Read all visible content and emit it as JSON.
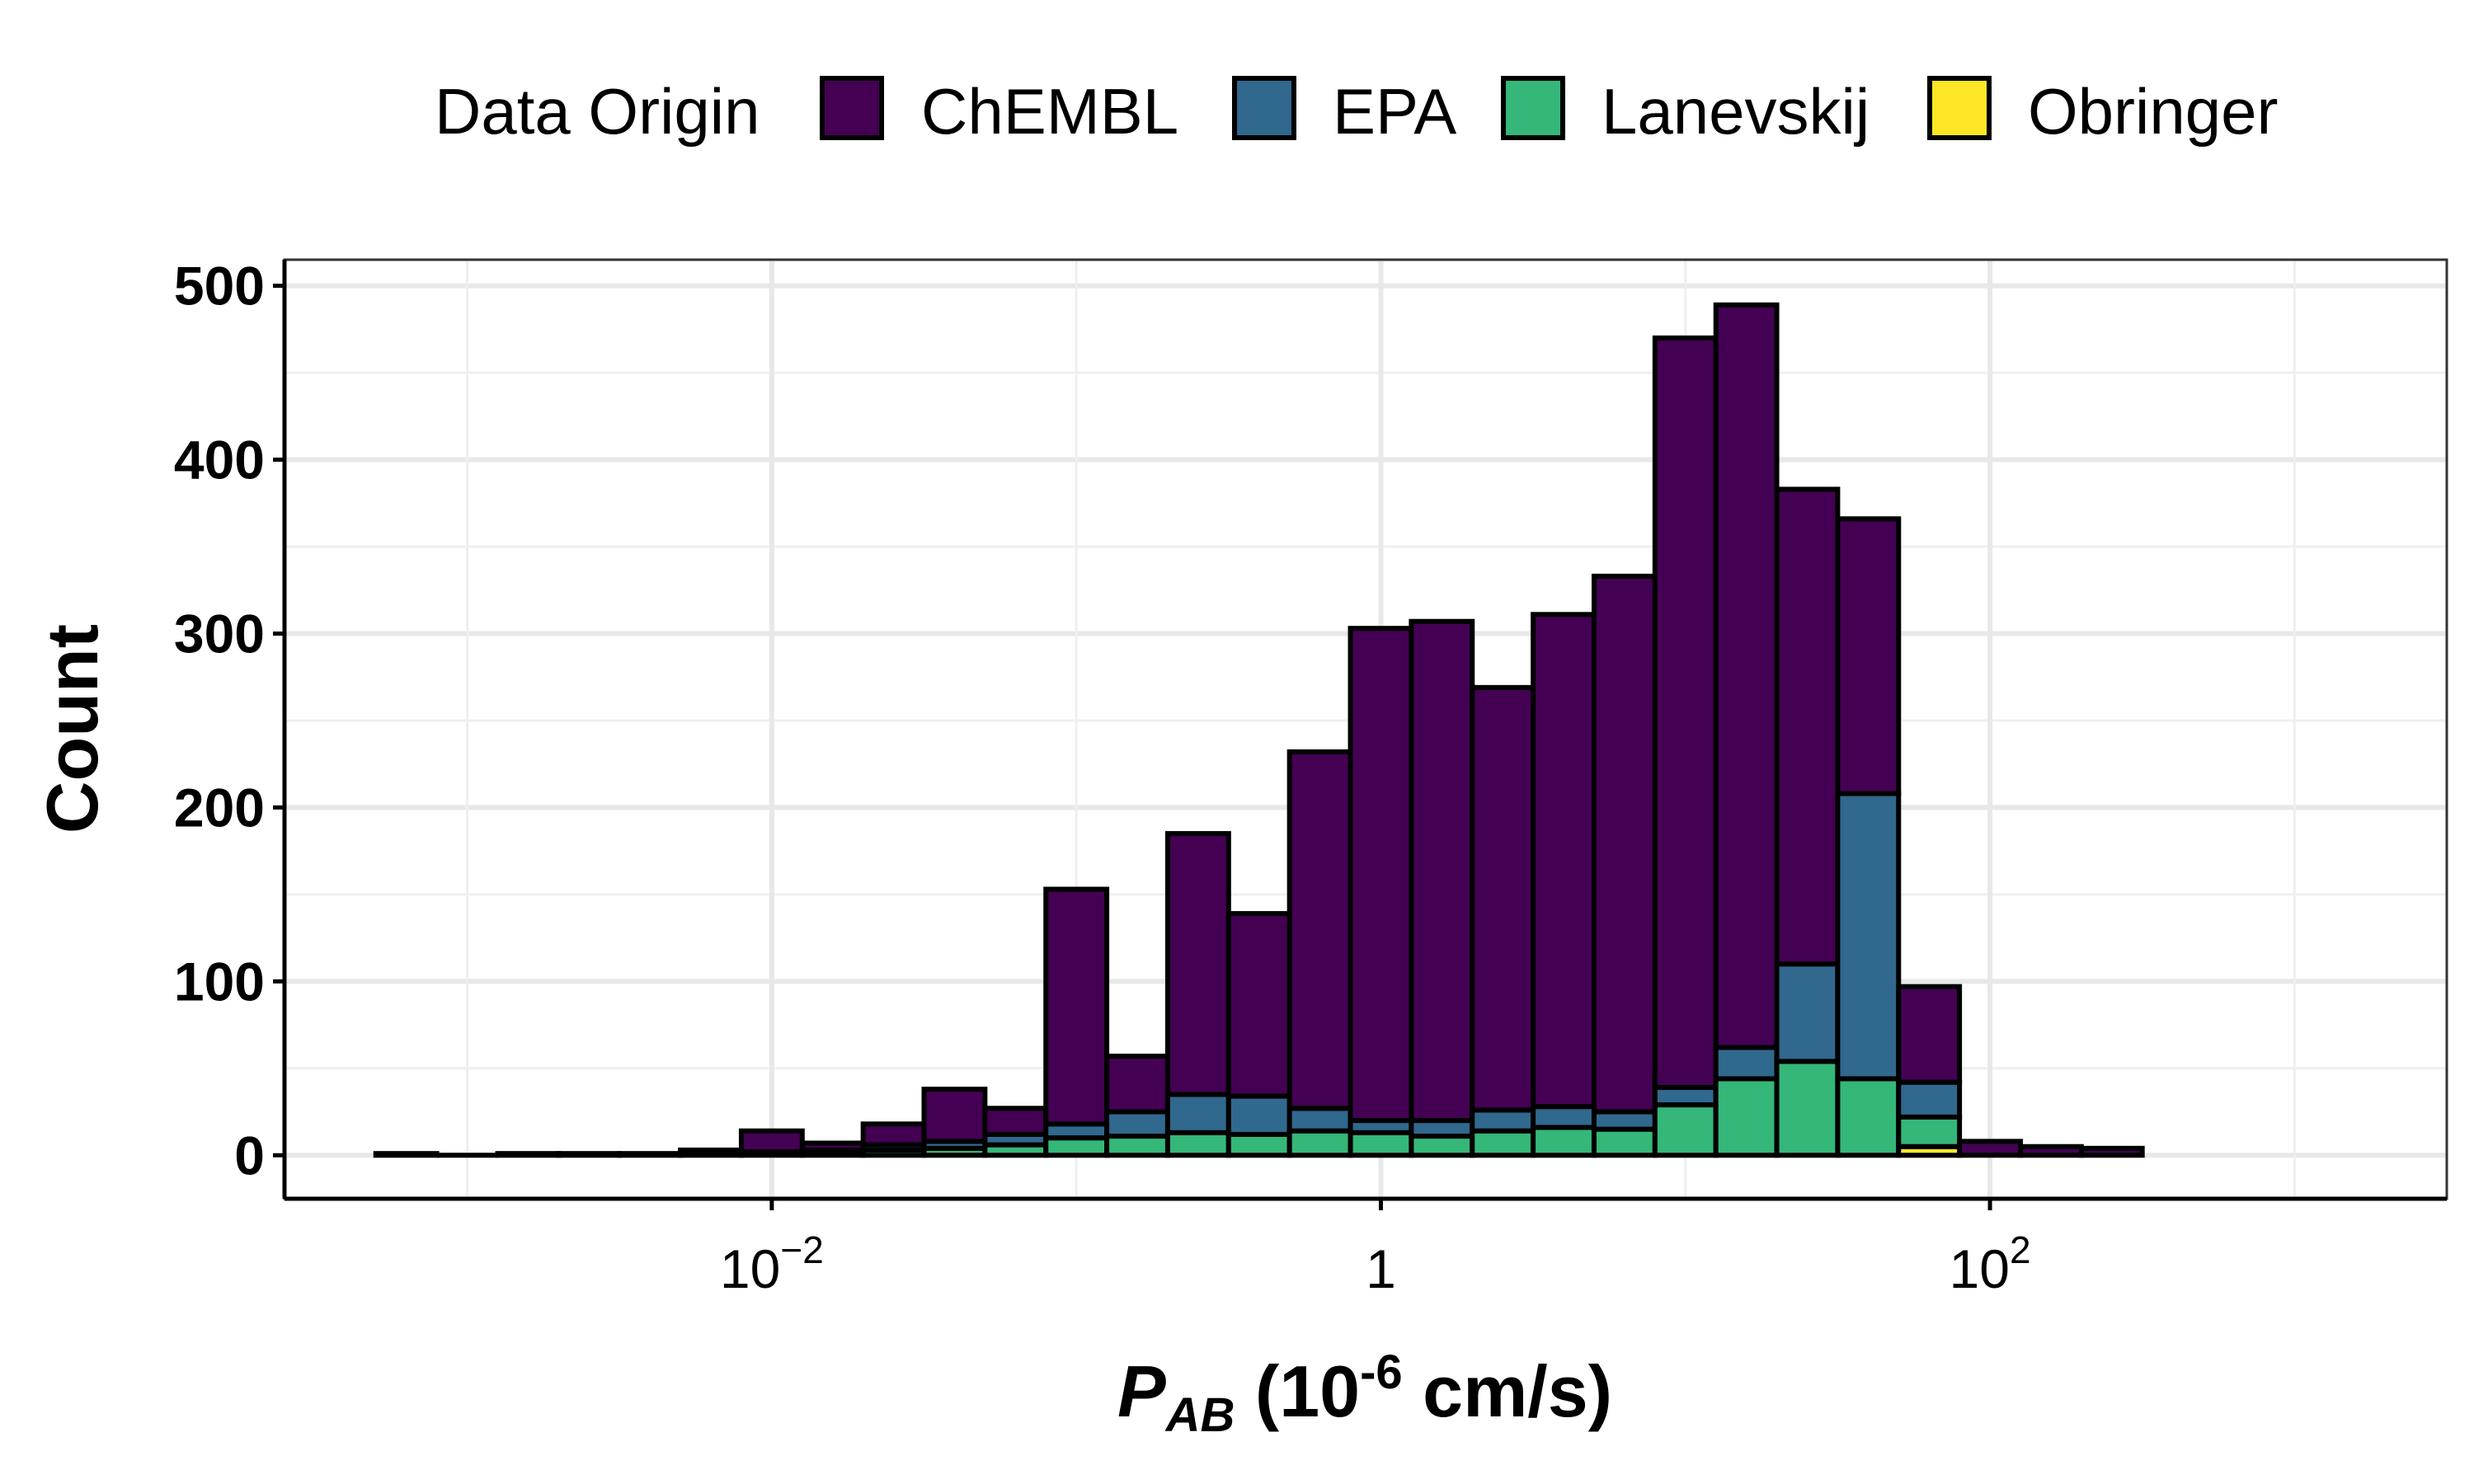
{
  "chart_data": {
    "type": "bar",
    "subtype": "stacked-histogram",
    "xscale": "log10",
    "xlim_log10": [
      -3.6,
      3.5
    ],
    "ylim": [
      -25,
      515
    ],
    "legend": {
      "title": "Data Origin",
      "position": "top",
      "entries": [
        "ChEMBL",
        "EPA",
        "Lanevskij",
        "Obringer"
      ]
    },
    "colors": {
      "ChEMBL": "#440154",
      "EPA": "#31688E",
      "Lanevskij": "#35B779",
      "Obringer": "#FDE725"
    },
    "stack_order": [
      "Obringer",
      "Lanevskij",
      "EPA",
      "ChEMBL"
    ],
    "bin_width_log10": 0.2,
    "bin_centers_log10": [
      -3.2,
      -3.0,
      -2.8,
      -2.6,
      -2.4,
      -2.2,
      -2.0,
      -1.8,
      -1.6,
      -1.4,
      -1.2,
      -1.0,
      -0.8,
      -0.6,
      -0.4,
      -0.2,
      0.0,
      0.2,
      0.4,
      0.6,
      0.8,
      1.0,
      1.2,
      1.4,
      1.6,
      1.8,
      2.0,
      2.2,
      2.4
    ],
    "series": [
      {
        "name": "ChEMBL",
        "values": [
          1,
          0,
          1,
          1,
          1,
          2,
          12,
          4,
          12,
          30,
          15,
          135,
          32,
          150,
          105,
          205,
          283,
          287,
          243,
          283,
          308,
          431,
          427,
          273,
          158,
          55,
          8,
          5,
          4
        ]
      },
      {
        "name": "EPA",
        "values": [
          0,
          0,
          0,
          0,
          0,
          0,
          0,
          1,
          3,
          4,
          6,
          8,
          14,
          22,
          22,
          13,
          7,
          9,
          12,
          12,
          10,
          10,
          18,
          56,
          164,
          20,
          0,
          0,
          0
        ]
      },
      {
        "name": "Lanevskij",
        "values": [
          0,
          0,
          0,
          0,
          0,
          1,
          2,
          2,
          3,
          4,
          6,
          10,
          11,
          13,
          12,
          14,
          13,
          11,
          14,
          16,
          15,
          29,
          44,
          54,
          44,
          17,
          0,
          0,
          0
        ]
      },
      {
        "name": "Obringer",
        "values": [
          0,
          0,
          0,
          0,
          0,
          0,
          0,
          0,
          0,
          0,
          0,
          0,
          0,
          0,
          0,
          0,
          0,
          0,
          0,
          0,
          0,
          0,
          0,
          0,
          0,
          5,
          0,
          0,
          0
        ]
      }
    ],
    "y_ticks": [
      0,
      100,
      200,
      300,
      400,
      500
    ],
    "y_tick_labels": [
      "0",
      "100",
      "200",
      "300",
      "400",
      "500"
    ],
    "x_ticks_log10": [
      -2,
      0,
      2
    ],
    "x_tick_labels": [
      {
        "base": "10",
        "sup": "−2"
      },
      {
        "base": "1",
        "sup": ""
      },
      {
        "base": "10",
        "sup": "2"
      }
    ],
    "xlabel": {
      "main": "P",
      "sub": "AB",
      "unit_open": " (10",
      "unit_sup": "-6",
      "unit_close": " cm/s)"
    },
    "ylabel": "Count",
    "grid": true
  }
}
